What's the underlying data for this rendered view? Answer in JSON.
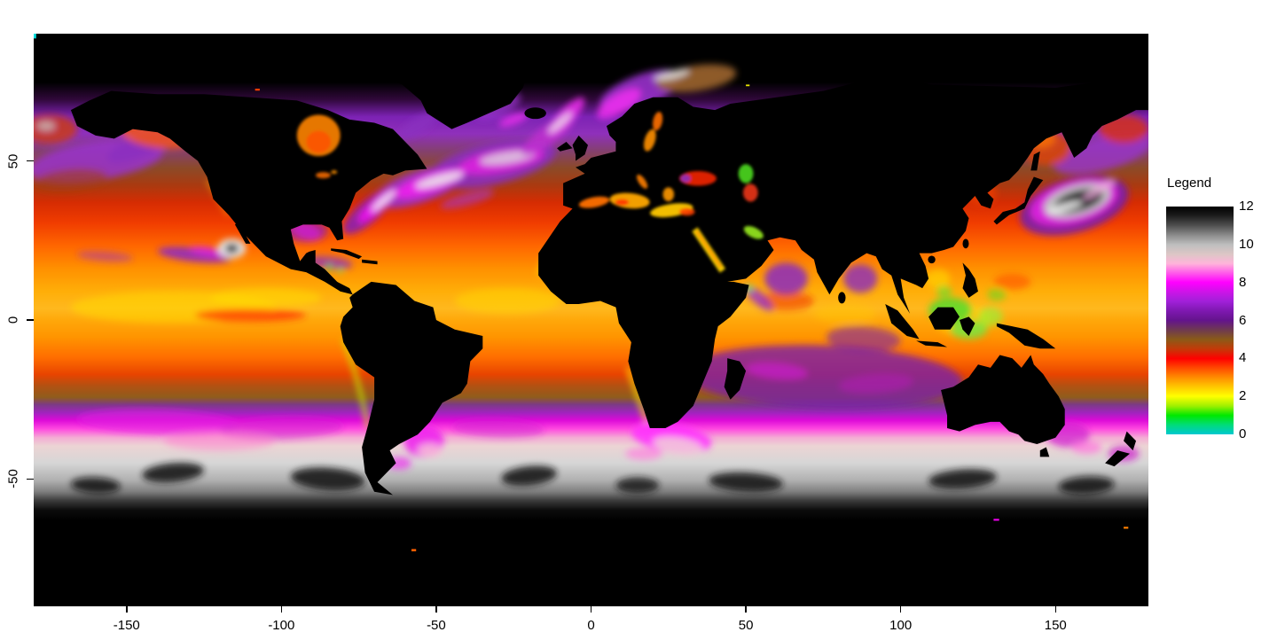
{
  "legend": {
    "title": "Legend",
    "labels": [
      "12",
      "10",
      "8",
      "6",
      "4",
      "2",
      "0"
    ],
    "gradient": [
      [
        0,
        "#000000"
      ],
      [
        0.04,
        "#1c1c1c"
      ],
      [
        0.083,
        "#4f4f4f"
      ],
      [
        0.125,
        "#8a8a8a"
      ],
      [
        0.167,
        "#bebebe"
      ],
      [
        0.21,
        "#ddc6c6"
      ],
      [
        0.25,
        "#ffb4da"
      ],
      [
        0.292,
        "#ff5aea"
      ],
      [
        0.333,
        "#ff00ff"
      ],
      [
        0.375,
        "#cc14e8"
      ],
      [
        0.417,
        "#a020d8"
      ],
      [
        0.458,
        "#7e18b0"
      ],
      [
        0.5,
        "#64148c"
      ],
      [
        0.542,
        "#6f3a50"
      ],
      [
        0.583,
        "#8a5a18"
      ],
      [
        0.625,
        "#c33a08"
      ],
      [
        0.667,
        "#ff0000"
      ],
      [
        0.708,
        "#ff4800"
      ],
      [
        0.75,
        "#ff8c00"
      ],
      [
        0.792,
        "#ffc800"
      ],
      [
        0.833,
        "#ffff00"
      ],
      [
        0.875,
        "#a0f000"
      ],
      [
        0.917,
        "#00e800"
      ],
      [
        0.958,
        "#00dc78"
      ],
      [
        1,
        "#00c8d0"
      ]
    ]
  },
  "axes": {
    "x": {
      "ticks": [
        {
          "label": "-150",
          "lon": -150
        },
        {
          "label": "-100",
          "lon": -100
        },
        {
          "label": "-50",
          "lon": -50
        },
        {
          "label": "0",
          "lon": 0
        },
        {
          "label": "50",
          "lon": 50
        },
        {
          "label": "100",
          "lon": 100
        },
        {
          "label": "150",
          "lon": 150
        }
      ]
    },
    "y": {
      "ticks": [
        {
          "label": "50",
          "lat": 50
        },
        {
          "label": "0",
          "lat": 0
        },
        {
          "label": "-50",
          "lat": -50
        }
      ]
    }
  },
  "chart_data": {
    "type": "heatmap",
    "title": "",
    "xlabel": "",
    "ylabel": "",
    "x_range": [
      -180,
      180
    ],
    "y_range": [
      -90,
      90
    ],
    "x_ticks": [
      -150,
      -100,
      -50,
      0,
      50,
      100,
      150
    ],
    "y_ticks": [
      50,
      0,
      -50
    ],
    "grid": false,
    "colorbar": {
      "title": "Legend",
      "min": 0,
      "max": 12,
      "tick_values": [
        12,
        10,
        8,
        6,
        4,
        2,
        0
      ],
      "palette": [
        {
          "value": 0,
          "color": "#00c8d0"
        },
        {
          "value": 1,
          "color": "#00e800"
        },
        {
          "value": 2,
          "color": "#ffff00"
        },
        {
          "value": 3,
          "color": "#ff8c00"
        },
        {
          "value": 4,
          "color": "#ff0000"
        },
        {
          "value": 5,
          "color": "#8a5a18"
        },
        {
          "value": 6,
          "color": "#64148c"
        },
        {
          "value": 7,
          "color": "#a020d8"
        },
        {
          "value": 8,
          "color": "#ff00ff"
        },
        {
          "value": 9,
          "color": "#ffb4da"
        },
        {
          "value": 10,
          "color": "#bebebe"
        },
        {
          "value": 11,
          "color": "#4f4f4f"
        },
        {
          "value": 12,
          "color": "#000000"
        }
      ]
    },
    "description": "Global ocean raster heatmap on an equirectangular grid (lon -180..180, lat -90..90). Values 0-12 run through a cyan-green-yellow-orange-red-brown-purple-magenta-pink-gray-black palette. Land, Arctic and Antarctic no-data cells are black.",
    "ocean_gradient": [
      [
        0,
        "#000000"
      ],
      [
        0.085,
        "#000000"
      ],
      [
        0.115,
        "#30083a"
      ],
      [
        0.145,
        "#7c22b4"
      ],
      [
        0.175,
        "#8f30bb"
      ],
      [
        0.205,
        "#84406e"
      ],
      [
        0.235,
        "#8c4a28"
      ],
      [
        0.265,
        "#aa3a10"
      ],
      [
        0.295,
        "#d62c02"
      ],
      [
        0.33,
        "#f03c00"
      ],
      [
        0.37,
        "#ff6600"
      ],
      [
        0.41,
        "#ff9000"
      ],
      [
        0.45,
        "#ffae08"
      ],
      [
        0.48,
        "#ffb81e"
      ],
      [
        0.5,
        "#ffa80a"
      ],
      [
        0.53,
        "#ff9400"
      ],
      [
        0.565,
        "#ff6e00"
      ],
      [
        0.595,
        "#e84400"
      ],
      [
        0.615,
        "#b25112"
      ],
      [
        0.635,
        "#8f5c1c"
      ],
      [
        0.648,
        "#7c3a86"
      ],
      [
        0.662,
        "#a024be"
      ],
      [
        0.675,
        "#dd0ad8"
      ],
      [
        0.69,
        "#ff48e0"
      ],
      [
        0.705,
        "#f4aad4"
      ],
      [
        0.72,
        "#ecd4d4"
      ],
      [
        0.75,
        "#d6d6d6"
      ],
      [
        0.78,
        "#b0b0b0"
      ],
      [
        0.8,
        "#7e7e7e"
      ],
      [
        0.815,
        "#3c3c3c"
      ],
      [
        0.832,
        "#0c0c0c"
      ],
      [
        0.85,
        "#000000"
      ],
      [
        1,
        "#000000"
      ]
    ],
    "notable_features": [
      "Gulf Stream / North Atlantic Drift: purple-magenta swirls with white cores from the US east coast toward Norway",
      "Kuroshio extension east of Japan: dark gray-black core ringed by white, magenta and purple",
      "Antarctic Circumpolar band: pink-white to gray belt between about 33S and 55S with dark patches",
      "Tropics: orange-yellow band with red flanks near +-10..20 latitude",
      "Southern Indian Ocean and Arabian Sea / Bay of Bengal: broad purple patches",
      "Green-cyan low values near Indonesia, coastal upwelling zones and marginal seas",
      "Colored inland seas over black land: Mediterranean, Black Sea, Caspian, Red Sea, Persian Gulf, Hudson Bay, Baltic"
    ]
  }
}
